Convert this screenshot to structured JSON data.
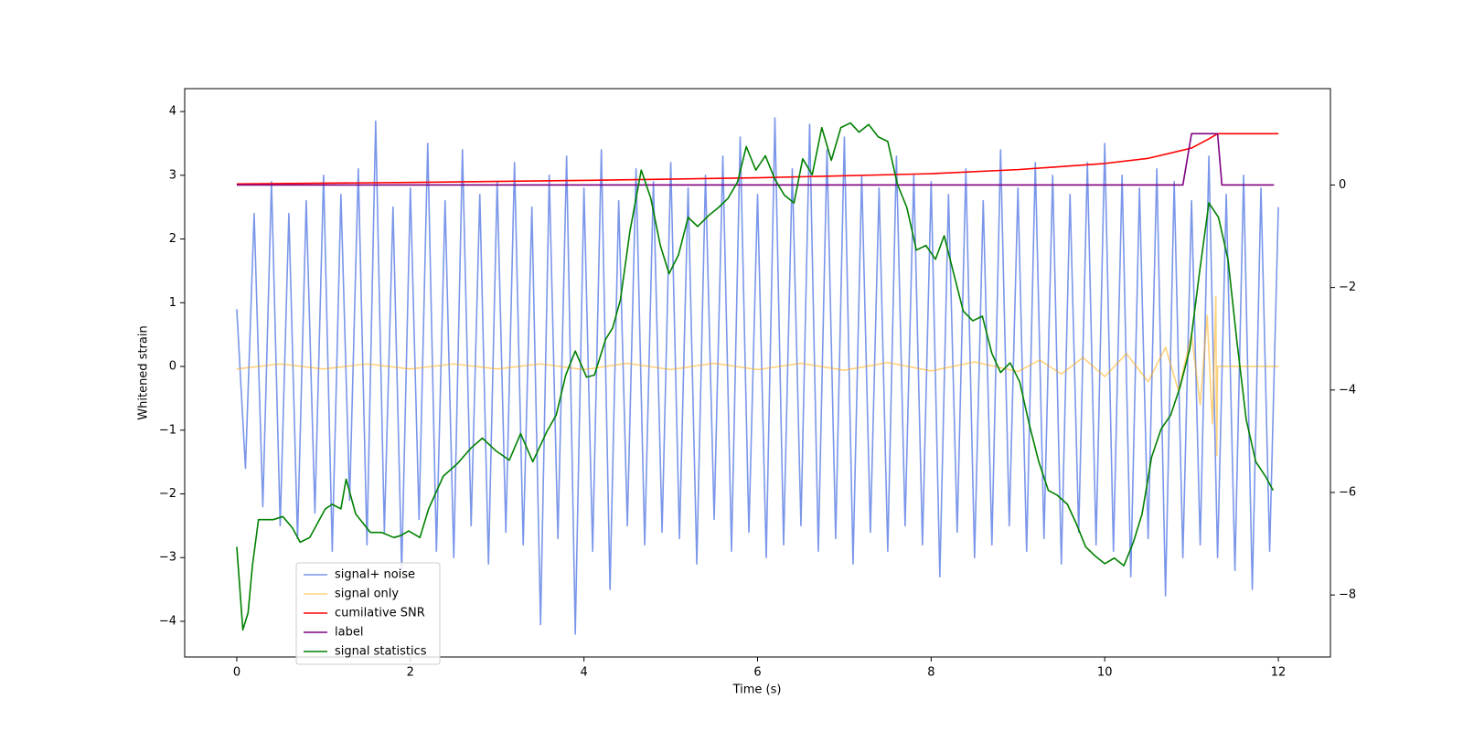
{
  "chart_data": {
    "type": "line",
    "x_label": "Time (s)",
    "y_label": "Whitened strain",
    "xlim": [
      -0.6,
      12.6
    ],
    "xticks": [
      0,
      2,
      4,
      6,
      8,
      10,
      12
    ],
    "ylim": [
      -4.56,
      4.36
    ],
    "yticks": [
      {
        "value": -4,
        "label": "−4"
      },
      {
        "value": -3,
        "label": "−3"
      },
      {
        "value": -2,
        "label": "−2"
      },
      {
        "value": -1,
        "label": "−1"
      },
      0,
      1,
      2,
      3,
      4
    ],
    "y2lim": [
      -9.21,
      1.88
    ],
    "y2ticks": [
      {
        "value": -8,
        "label": "−8"
      },
      {
        "value": -6,
        "label": "−6"
      },
      {
        "value": -4,
        "label": "−4"
      },
      {
        "value": -2,
        "label": "−2"
      },
      0
    ],
    "grid": false,
    "legend": "lower left",
    "series": [
      {
        "name": "signal+ noise",
        "color": "#4169e1",
        "opacity": 0.7,
        "axis": "y",
        "x": [
          0,
          0.1,
          0.2,
          0.3,
          0.4,
          0.5,
          0.6,
          0.7,
          0.8,
          0.9,
          1,
          1.1,
          1.2,
          1.3,
          1.4,
          1.5,
          1.6,
          1.7,
          1.8,
          1.9,
          2,
          2.1,
          2.2,
          2.3,
          2.4,
          2.5,
          2.6,
          2.7,
          2.8,
          2.9,
          3,
          3.1,
          3.2,
          3.3,
          3.4,
          3.5,
          3.6,
          3.7,
          3.8,
          3.9,
          4,
          4.1,
          4.2,
          4.3,
          4.4,
          4.5,
          4.6,
          4.7,
          4.8,
          4.9,
          5,
          5.1,
          5.2,
          5.3,
          5.4,
          5.5,
          5.6,
          5.7,
          5.8,
          5.9,
          6,
          6.1,
          6.2,
          6.3,
          6.4,
          6.5,
          6.6,
          6.7,
          6.8,
          6.9,
          7,
          7.1,
          7.2,
          7.3,
          7.4,
          7.5,
          7.6,
          7.7,
          7.8,
          7.9,
          8,
          8.1,
          8.2,
          8.3,
          8.4,
          8.5,
          8.6,
          8.7,
          8.8,
          8.9,
          9,
          9.1,
          9.2,
          9.3,
          9.4,
          9.5,
          9.6,
          9.7,
          9.8,
          9.9,
          10,
          10.1,
          10.2,
          10.3,
          10.4,
          10.5,
          10.6,
          10.7,
          10.8,
          10.9,
          11,
          11.1,
          11.2,
          11.3,
          11.4,
          11.5,
          11.6,
          11.7,
          11.8,
          11.9,
          12
        ],
        "values": [
          0.9,
          -1.6,
          2.4,
          -2.2,
          2.9,
          -2.5,
          2.4,
          -2.7,
          2.6,
          -2.3,
          3.0,
          -2.9,
          2.7,
          -2.1,
          3.1,
          -2.8,
          3.85,
          -2.6,
          2.5,
          -3.2,
          2.8,
          -2.4,
          3.5,
          -2.9,
          2.6,
          -3.0,
          3.4,
          -2.5,
          2.7,
          -3.1,
          2.9,
          -2.6,
          3.2,
          -2.8,
          2.5,
          -4.05,
          3.0,
          -2.7,
          3.3,
          -4.2,
          2.8,
          -2.9,
          3.4,
          -3.5,
          2.6,
          -2.5,
          3.1,
          -2.8,
          2.9,
          -2.6,
          3.2,
          -2.7,
          2.8,
          -3.1,
          3.0,
          -2.4,
          3.3,
          -2.9,
          3.6,
          -2.6,
          2.7,
          -3.0,
          3.9,
          -2.8,
          3.1,
          -2.5,
          3.8,
          -2.9,
          3.4,
          -2.7,
          3.6,
          -3.1,
          3.0,
          -2.6,
          2.8,
          -2.9,
          3.3,
          -2.5,
          3.0,
          -2.8,
          2.9,
          -3.3,
          2.7,
          -2.6,
          3.1,
          -3.0,
          2.6,
          -2.8,
          3.4,
          -2.5,
          2.8,
          -2.9,
          3.2,
          -2.7,
          3.0,
          -3.1,
          2.7,
          -2.6,
          3.2,
          -2.8,
          3.5,
          -2.9,
          3.0,
          -3.3,
          2.8,
          -2.7,
          3.1,
          -3.6,
          2.9,
          -3.0,
          2.6,
          -2.8,
          3.3,
          -3.0,
          2.7,
          -3.2,
          3.0,
          -3.5,
          2.8,
          -2.9,
          2.5
        ]
      },
      {
        "name": "signal only",
        "color": "#ffa500",
        "opacity": 0.5,
        "axis": "y",
        "x": [
          0,
          0.5,
          1,
          1.5,
          2,
          2.5,
          3,
          3.5,
          4,
          4.5,
          5,
          5.5,
          6,
          6.5,
          7,
          7.5,
          8,
          8.5,
          9,
          9.25,
          9.5,
          9.75,
          10,
          10.25,
          10.5,
          10.7,
          10.85,
          11.0,
          11.1,
          11.18,
          11.24,
          11.28,
          11.29,
          11.3,
          12
        ],
        "values": [
          -0.04,
          0.04,
          -0.04,
          0.04,
          -0.04,
          0.04,
          -0.04,
          0.04,
          -0.05,
          0.05,
          -0.05,
          0.05,
          -0.05,
          0.05,
          -0.06,
          0.06,
          -0.07,
          0.07,
          -0.08,
          0.1,
          -0.12,
          0.14,
          -0.16,
          0.2,
          -0.24,
          0.3,
          -0.38,
          0.5,
          -0.6,
          0.8,
          -0.9,
          1.1,
          -1.4,
          0,
          0
        ]
      },
      {
        "name": "cumilative SNR",
        "color": "#ff0000",
        "opacity": 1,
        "axis": "y2",
        "x": [
          0,
          2,
          4,
          6,
          8,
          9,
          10,
          10.5,
          11,
          11.2,
          11.3,
          12
        ],
        "values": [
          0.02,
          0.05,
          0.09,
          0.14,
          0.22,
          0.3,
          0.42,
          0.52,
          0.72,
          0.9,
          1.0,
          1.0
        ]
      },
      {
        "name": "label",
        "color": "#800080",
        "opacity": 1,
        "axis": "y2",
        "x": [
          0,
          10.9,
          11.0,
          11.3,
          11.35,
          11.95
        ],
        "values": [
          0,
          0,
          1,
          1,
          0,
          0
        ]
      },
      {
        "name": "signal statistics",
        "color": "#008000",
        "opacity": 1,
        "axis": "y2",
        "x": [
          0,
          0.07,
          0.13,
          0.18,
          0.25,
          0.42,
          0.53,
          0.64,
          0.73,
          0.84,
          1.02,
          1.1,
          1.2,
          1.26,
          1.37,
          1.54,
          1.67,
          1.81,
          1.89,
          1.98,
          2.11,
          2.21,
          2.38,
          2.54,
          2.7,
          2.83,
          2.98,
          3.14,
          3.27,
          3.41,
          3.57,
          3.68,
          3.79,
          3.9,
          4.03,
          4.12,
          4.25,
          4.33,
          4.42,
          4.53,
          4.66,
          4.77,
          4.88,
          4.98,
          5.09,
          5.2,
          5.31,
          5.44,
          5.55,
          5.66,
          5.77,
          5.87,
          5.98,
          6.09,
          6.2,
          6.31,
          6.42,
          6.52,
          6.63,
          6.74,
          6.85,
          6.96,
          7.07,
          7.17,
          7.28,
          7.39,
          7.5,
          7.61,
          7.72,
          7.83,
          7.94,
          8.05,
          8.15,
          8.26,
          8.37,
          8.48,
          8.59,
          8.7,
          8.8,
          8.91,
          9.02,
          9.13,
          9.24,
          9.35,
          9.45,
          9.57,
          9.67,
          9.78,
          9.89,
          10.0,
          10.11,
          10.22,
          10.33,
          10.43,
          10.54,
          10.65,
          10.76,
          10.87,
          10.98,
          11.09,
          11.2,
          11.31,
          11.42,
          11.52,
          11.63,
          11.74,
          11.85,
          11.94
        ],
        "values": [
          -7.06,
          -8.68,
          -8.35,
          -7.43,
          -6.53,
          -6.53,
          -6.47,
          -6.69,
          -6.97,
          -6.88,
          -6.32,
          -6.23,
          -6.32,
          -5.74,
          -6.42,
          -6.78,
          -6.78,
          -6.88,
          -6.84,
          -6.75,
          -6.88,
          -6.32,
          -5.68,
          -5.44,
          -5.13,
          -4.94,
          -5.18,
          -5.37,
          -4.85,
          -5.4,
          -4.82,
          -4.49,
          -3.71,
          -3.24,
          -3.75,
          -3.71,
          -3.01,
          -2.79,
          -2.24,
          -0.9,
          0.29,
          -0.26,
          -1.18,
          -1.73,
          -1.36,
          -0.63,
          -0.81,
          -0.59,
          -0.44,
          -0.26,
          0.06,
          0.75,
          0.29,
          0.57,
          0.11,
          -0.2,
          -0.35,
          0.51,
          0.2,
          1.12,
          0.48,
          1.12,
          1.21,
          1.03,
          1.18,
          0.94,
          0.85,
          0.02,
          -0.44,
          -1.27,
          -1.18,
          -1.45,
          -0.99,
          -1.73,
          -2.46,
          -2.65,
          -2.56,
          -3.29,
          -3.66,
          -3.47,
          -3.84,
          -4.67,
          -5.4,
          -5.96,
          -6.05,
          -6.23,
          -6.6,
          -7.06,
          -7.24,
          -7.39,
          -7.28,
          -7.43,
          -6.97,
          -6.42,
          -5.31,
          -4.76,
          -4.49,
          -3.93,
          -3.2,
          -1.73,
          -0.35,
          -0.63,
          -1.45,
          -3.01,
          -4.58,
          -5.4,
          -5.68,
          -5.96
        ]
      }
    ]
  }
}
